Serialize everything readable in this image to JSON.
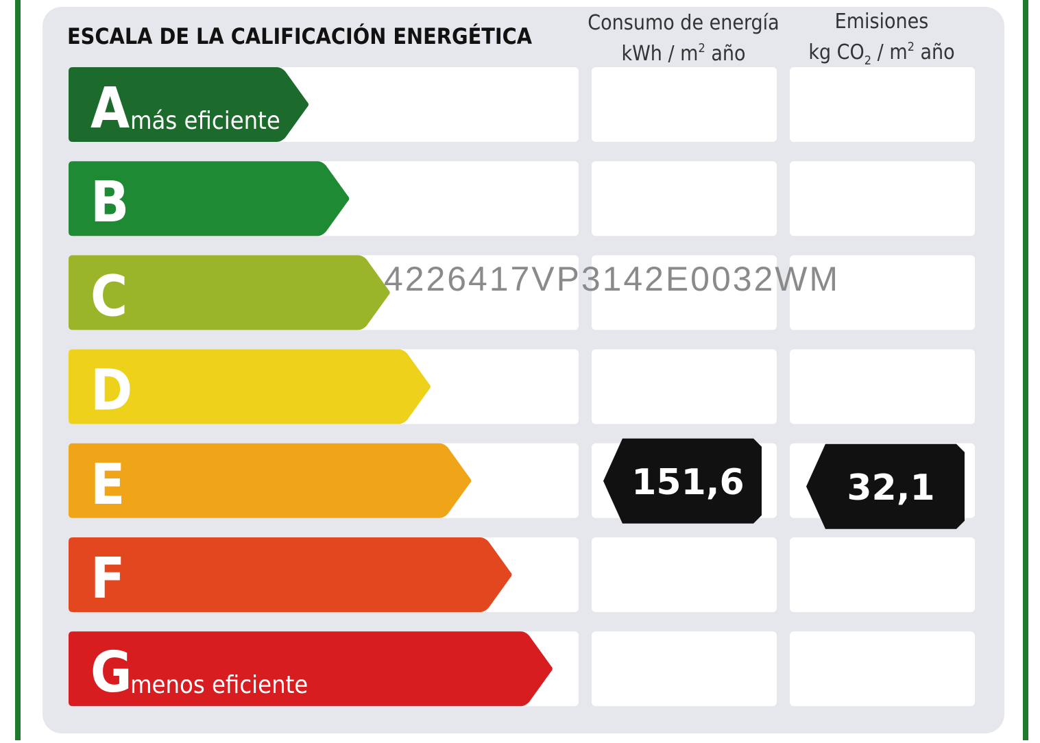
{
  "header": {
    "title": "ESCALA DE LA CALIFICACIÓN ENERGÉTICA"
  },
  "columns": {
    "consumption": {
      "title": "Consumo de energía",
      "unit": [
        "kWh / m",
        "2",
        " año"
      ]
    },
    "emissions": {
      "title": "Emisiones",
      "unit": [
        "kg CO",
        "2",
        " / m",
        "2",
        " año"
      ]
    }
  },
  "ratings": [
    {
      "letter": "A",
      "label": "más eficiente",
      "color": "#1d6a2d"
    },
    {
      "letter": "B",
      "color": "#1f8a34"
    },
    {
      "letter": "C",
      "color": "#9bb52a"
    },
    {
      "letter": "D",
      "color": "#eed11b"
    },
    {
      "letter": "E",
      "color": "#f0a418",
      "consumption": "151,6",
      "emissions": "32,1"
    },
    {
      "letter": "F",
      "color": "#e3471f"
    },
    {
      "letter": "G",
      "label": "menos eficiente",
      "color": "#d71d20"
    }
  ],
  "reference": "4226417VP3142E0032WM"
}
